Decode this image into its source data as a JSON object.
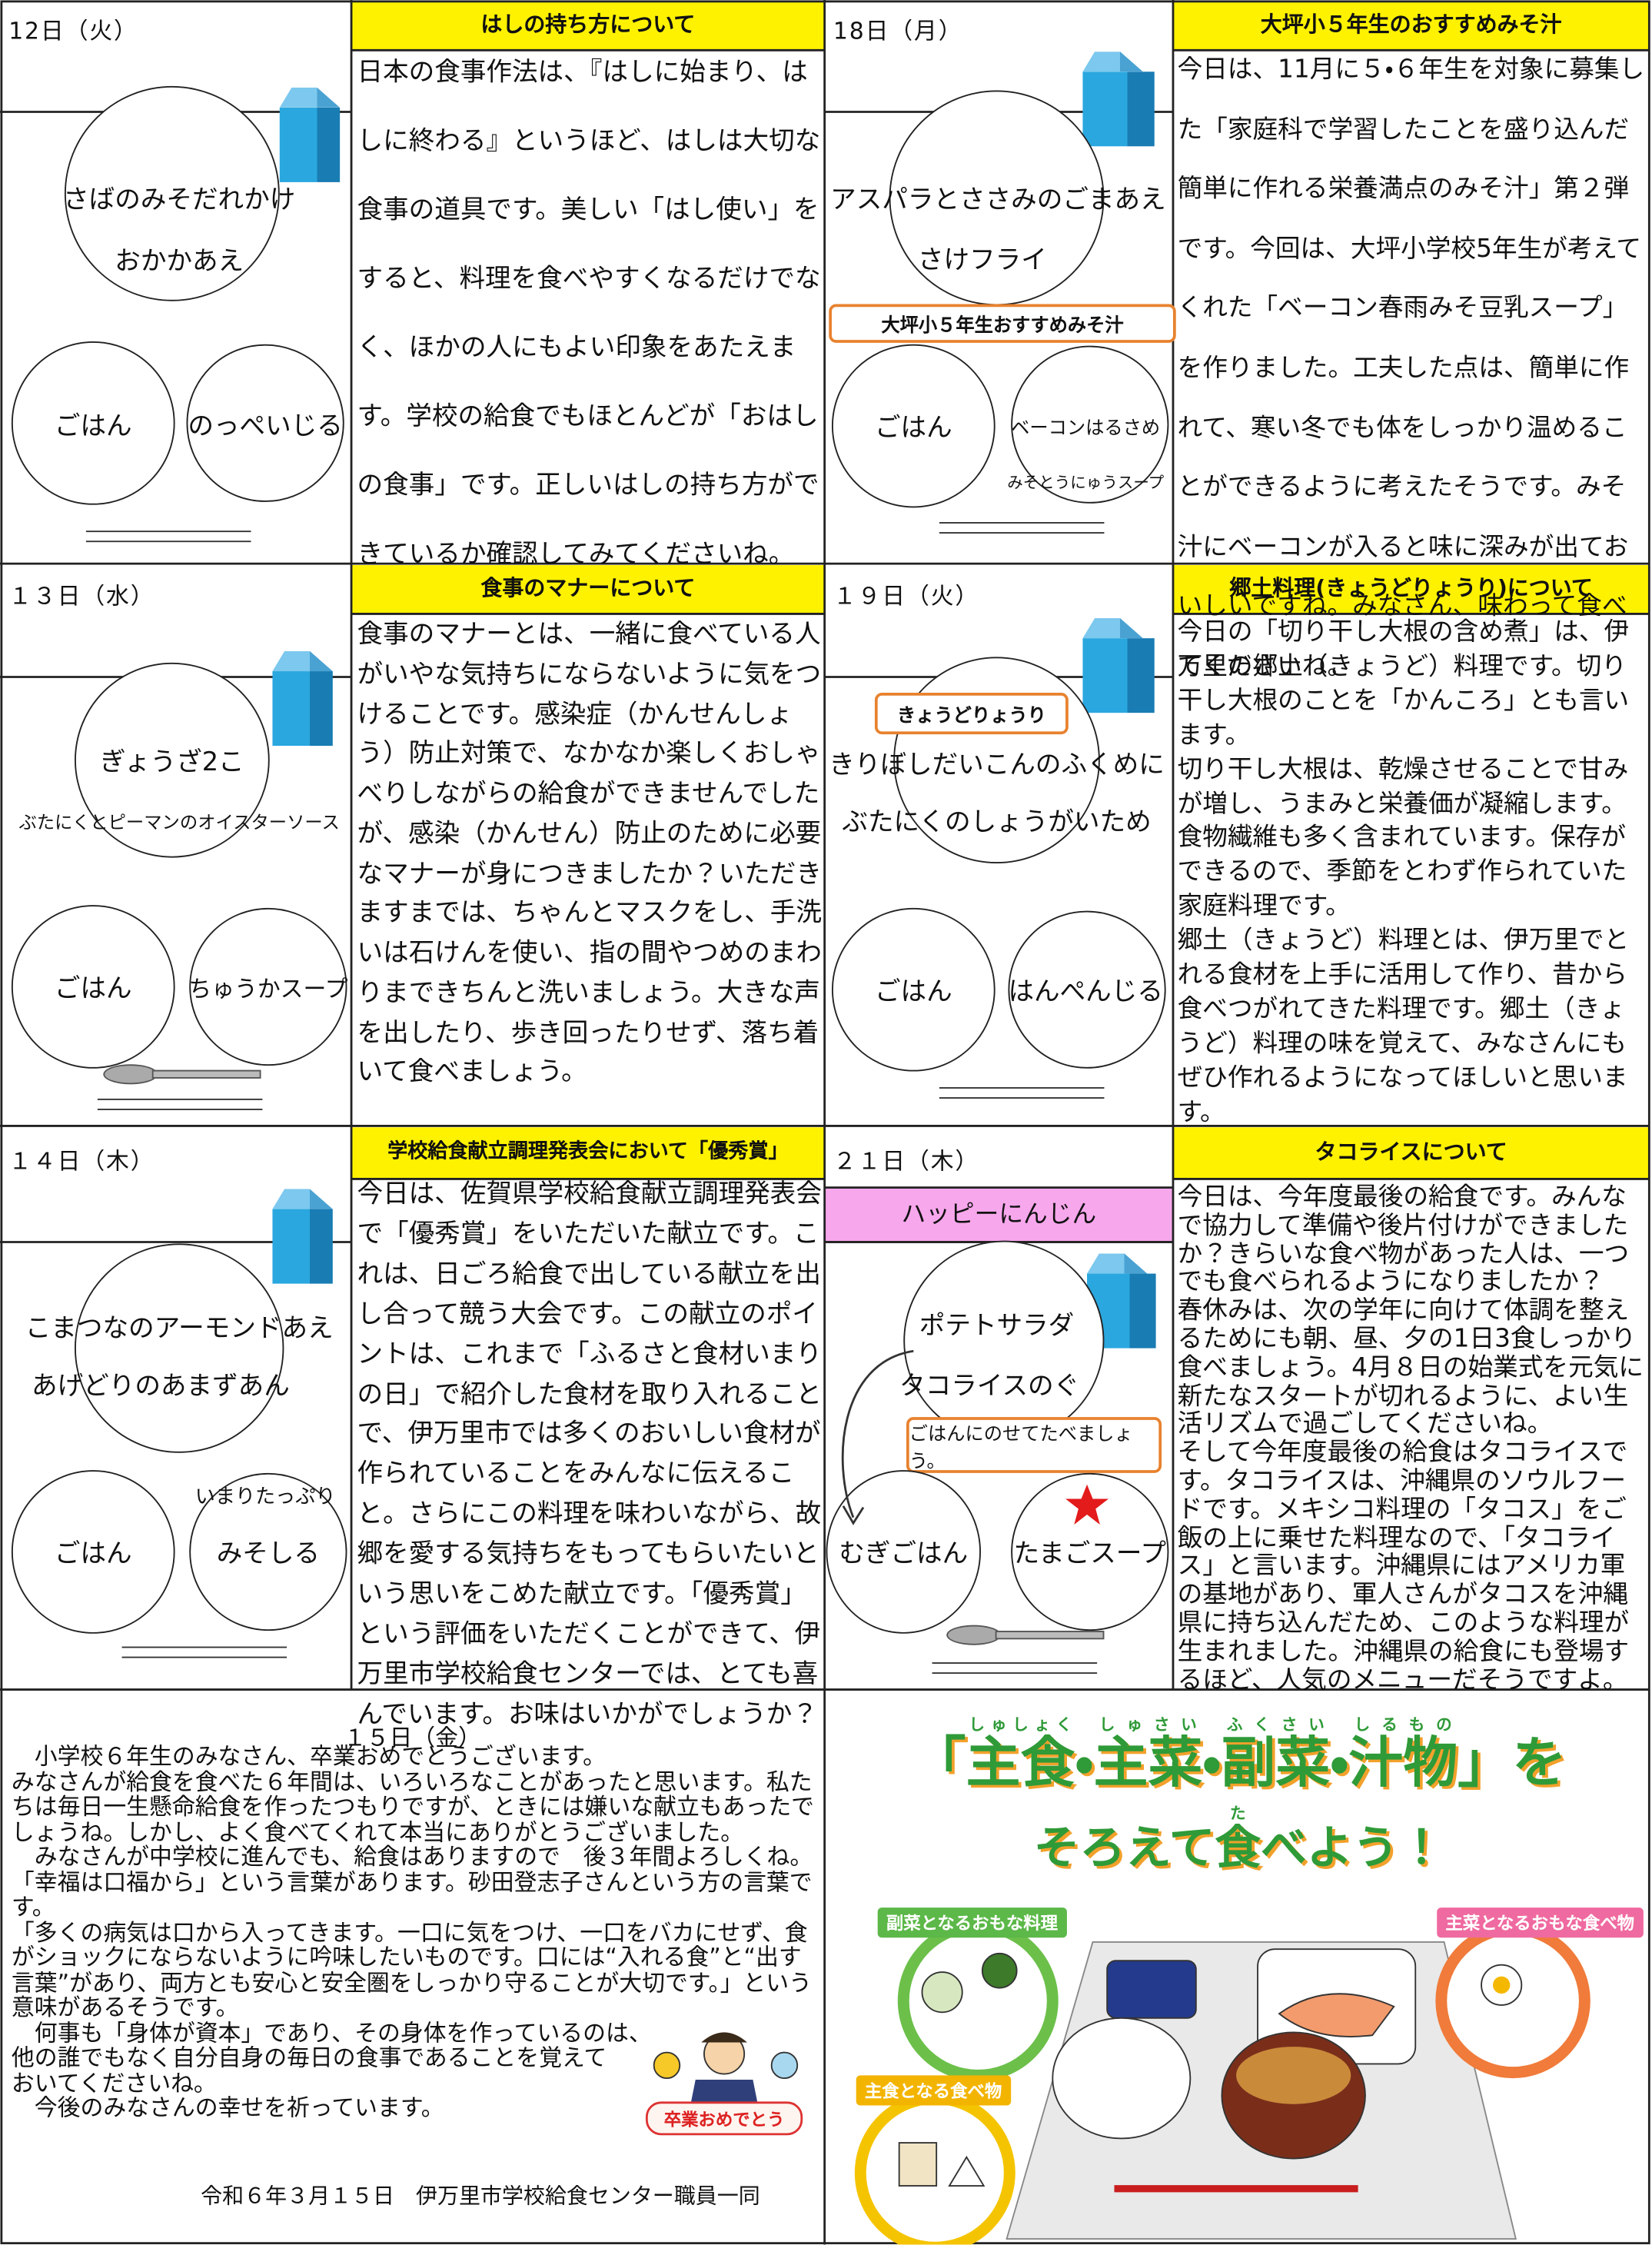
{
  "days": [
    {
      "date": "12日（火）",
      "title": "はしの持ち方について",
      "menu": [
        "さばのみそだれかけ",
        "おかかあえ",
        "ごはん",
        "のっぺいじる"
      ],
      "text": [
        "日本の食事作法は、『はしに始まり、はしに終わる』というほど、はしは大切な食事の道具です。美しい「はし使い」をすると、料理を食べやすくなるだけでなく、ほかの人にもよい印象をあたえます。学校の給食でもほとんどが「おはしの食事」です。正しいはしの持ち方ができているか確認してみてくださいね。"
      ]
    },
    {
      "date": "18日（月）",
      "title": "大坪小５年生のおすすめみそ汁",
      "menu": [
        "アスパラとささみのごまあえ",
        "さけフライ",
        "ごはん",
        "ベーコンはるさめ",
        "みそとうにゅうスープ"
      ],
      "note": "大坪小５年生おすすめみそ汁",
      "text": [
        "今日は、11月に５・６年生を対象に募集した「家庭科で学習したことを盛り込んだ簡単に作れる栄養満点のみそ汁」第２弾です。今回は、大坪小学校5年生が考えてくれた「ベーコン春雨みそ豆乳スープ」を作りました。工夫した点は、簡単に作れて、寒い冬でも体をしっかり温めることができるように考えたそうです。みそ汁にベーコンが入ると味に深みが出ておいしいですね。みなさん、味わって食べてくださいね。"
      ]
    },
    {
      "date": "１３日（水）",
      "title": "食事のマナーについて",
      "menu": [
        "ぎょうざ2こ",
        "ぶたにくとピーマンのオイスターソース",
        "ごはん",
        "ちゅうかスープ"
      ],
      "text": [
        "食事のマナーとは、一緒に食べている人がいやな気持ちにならないように気をつけることです。感染症（かんせんしょう）防止対策で、なかなか楽しくおしゃべりしながらの給食ができませんでしたが、感染（かんせん）防止のために必要なマナーが身につきましたか？いただきますまでは、ちゃんとマスクをし、手洗いは石けんを使い、指の間やつめのまわりまできちんと洗いましょう。大きな声を出したり、歩き回ったりせず、落ち着いて食べましょう。"
      ]
    },
    {
      "date": "１９日（火）",
      "title": "郷土料理(きょうどりょうり)について",
      "menu": [
        "きりぼしだいこんのふくめに",
        "ぶたにくのしょうがいため",
        "ごはん",
        "はんぺんじる"
      ],
      "note": "きょうどりょうり",
      "text": [
        "今日の「切り干し大根の含め煮」は、伊万里の郷土（きょうど）料理です。切り干し大根のことを「かんころ」とも言います。",
        "切り干し大根は、乾燥させることで甘みが増し、うまみと栄養価が凝縮します。食物繊維も多く含まれています。保存ができるので、季節をとわず作られていた家庭料理です。",
        "郷土（きょうど）料理とは、伊万里でとれる食材を上手に活用して作り、昔から食べつがれてきた料理です。郷土（きょうど）料理の味を覚えて、みなさんにもぜひ作れるようになってほしいと思います。"
      ]
    },
    {
      "date": "１４日（木）",
      "title": "学校給食献立調理発表会において「優秀賞」",
      "menu": [
        "こまつなのアーモンドあえ",
        "あげどりのあまずあん",
        "ごはん",
        "いまりたっぷり",
        "みそしる"
      ],
      "text": [
        "今日は、佐賀県学校給食献立調理発表会で「優秀賞」をいただいた献立です。これは、日ごろ給食で出している献立を出し合って競う大会です。この献立のポイントは、これまで「ふるさと食材いまりの日」で紹介した食材を取り入れることで、伊万里市では多くのおいしい食材が作られていることをみんなに伝えること。さらにこの料理を味わいながら、故郷を愛する気持ちをもってもらいたいという思いをこめた献立です。「優秀賞」という評価をいただくことができて、伊万里市学校給食センターでは、とても喜んでいます。お味はいかがでしょうか？"
      ]
    },
    {
      "date": "２１日（木）",
      "title": "タコライスについて",
      "tag": "ハッピーにんじん",
      "menu": [
        "ポテトサラダ",
        "タコライスのぐ",
        "むぎごはん",
        "たまごスープ"
      ],
      "note": "ごはんにのせてたべましょう。",
      "text": [
        "今日は、今年度最後の給食です。みんなで協力して準備や後片付けができましたか？きらいな食べ物があった人は、一つでも食べられるようになりましたか？",
        "春休みは、次の学年に向けて体調を整えるためにも朝、昼、夕の1日3食しっかり食べましょう。4月８日の始業式を元気に新たなスタートが切れるように、よい生活リズムで過ごしてくださいね。",
        "そして今年度最後の給食はタコライスです。タコライスは、沖縄県のソウルフードです。メキシコ料理の「タコス」をご飯の上に乗せた料理なので、「タコライス」と言います。沖縄県にはアメリカ軍の基地があり、軍人さんがタコスを沖縄県に持ち込んだため、このような料理が生まれました。沖縄県の給食にも登場するほど、人気のメニューだそうですよ。"
      ]
    }
  ],
  "message": {
    "heading": "１５日（金）",
    "paragraphs": [
      "　小学校６年生のみなさん、卒業おめでとうございます。",
      "みなさんが給食を食べた６年間は、いろいろなことがあったと思います。私たちは毎日一生懸命給食を作ったつもりですが、ときには嫌いな献立もあったでしょうね。しかし、よく食べてくれて本当にありがとうございました。",
      "　みなさんが中学校に進んでも、給食はありますので　後３年間よろしくね。",
      "「幸福は口福から」という言葉があります。砂田登志子さんという方の言葉です。",
      "「多くの病気は口から入ってきます。一口に気をつけ、一口をバカにせず、食がショックにならないように吟味したいものです。口には“入れる食”と“出す言葉”があり、両方とも安心と安全圏をしっかり守ることが大切です。」という意味があるそうです。",
      "　何事も「身体が資本」であり、その身体を作っているのは、\n他の誰でもなく自分自身の毎日の食事であることを覚えて\nおいてくださいね。",
      "　今後のみなさんの幸せを祈っています。"
    ],
    "badge": "卒業おめでとう",
    "signature": "令和６年３月１５日　伊万里市学校給食センター職員一同"
  },
  "poster": {
    "title_line1": [
      "「",
      {
        "base": "主食",
        "ruby": "しゅしょく"
      },
      "・",
      {
        "base": "主菜",
        "ruby": "しゅさい"
      },
      "・",
      {
        "base": "副菜",
        "ruby": "ふくさい"
      },
      "・",
      {
        "base": "汁物",
        "ruby": "しるもの"
      },
      "」を"
    ],
    "title_line2": [
      "そろえて",
      {
        "base": "食",
        "ruby": "た"
      },
      "べよう！"
    ],
    "labels": [
      "副菜となるおもな料理",
      "主菜となるおもな食べ物",
      "主食となる食べ物"
    ]
  }
}
